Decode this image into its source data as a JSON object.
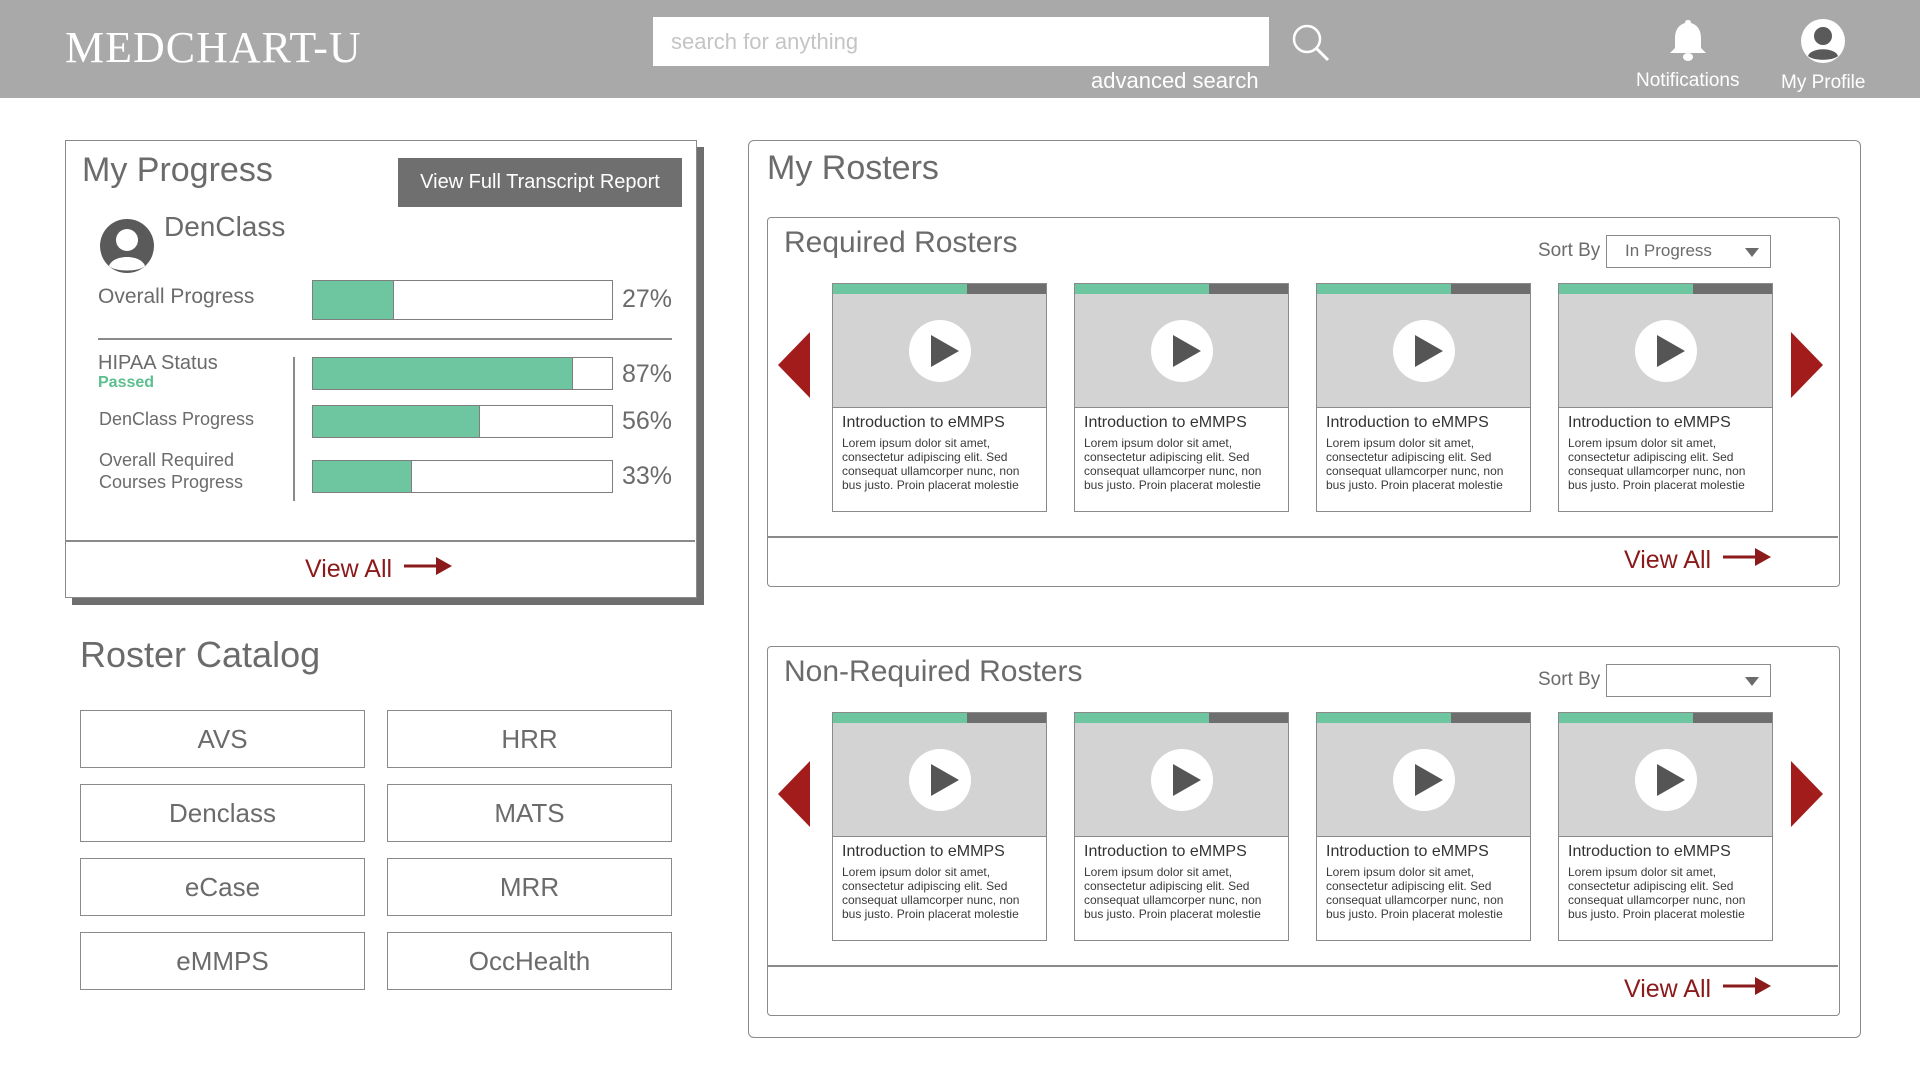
{
  "header": {
    "logo": "MEDCHART-U",
    "search_placeholder": "search for anything",
    "advanced_search": "advanced search",
    "notifications": "Notifications",
    "profile": "My Profile"
  },
  "progress": {
    "title": "My Progress",
    "transcript_button": "View Full Transcript Report",
    "user_name": "DenClass",
    "overall": {
      "label": "Overall Progress",
      "pct": "27%",
      "value": 0.27
    },
    "hipaa": {
      "label": "HIPAA Status",
      "status": "Passed",
      "pct": "87%",
      "value": 0.87
    },
    "denclass": {
      "label": "DenClass Progress",
      "pct": "56%",
      "value": 0.56
    },
    "required": {
      "label_line1": "Overall Required",
      "label_line2": "Courses Progress",
      "pct": "33%",
      "value": 0.33
    },
    "view_all": "View All"
  },
  "catalog": {
    "title": "Roster Catalog",
    "items": [
      "AVS",
      "HRR",
      "Denclass",
      "MATS",
      "eCase",
      "MRR",
      "eMMPS",
      "OccHealth"
    ]
  },
  "rosters": {
    "title": "My Rosters",
    "required": {
      "title": "Required Rosters",
      "sort_label": "Sort By",
      "sort_value": "In Progress",
      "view_all": "View All",
      "cards": [
        {
          "title": "Introduction to eMMPS",
          "desc": "Lorem ipsum dolor sit amet, consectetur adipiscing elit. Sed consequat ullamcorper nunc, non bus justo. Proin placerat molestie",
          "progress": 0.63
        },
        {
          "title": "Introduction to eMMPS",
          "desc": "Lorem ipsum dolor sit amet, consectetur adipiscing elit. Sed consequat ullamcorper nunc, non bus justo. Proin placerat molestie",
          "progress": 0.63
        },
        {
          "title": "Introduction to eMMPS",
          "desc": "Lorem ipsum dolor sit amet, consectetur adipiscing elit. Sed consequat ullamcorper nunc, non bus justo. Proin placerat molestie",
          "progress": 0.63
        },
        {
          "title": "Introduction to eMMPS",
          "desc": "Lorem ipsum dolor sit amet, consectetur adipiscing elit. Sed consequat ullamcorper nunc, non bus justo. Proin placerat molestie",
          "progress": 0.63
        }
      ]
    },
    "nonrequired": {
      "title": "Non-Required Rosters",
      "sort_label": "Sort By",
      "sort_value": "",
      "view_all": "View All",
      "cards": [
        {
          "title": "Introduction to eMMPS",
          "desc": "Lorem ipsum dolor sit amet, consectetur adipiscing elit. Sed consequat ullamcorper nunc, non bus justo. Proin placerat molestie",
          "progress": 0.63
        },
        {
          "title": "Introduction to eMMPS",
          "desc": "Lorem ipsum dolor sit amet, consectetur adipiscing elit. Sed consequat ullamcorper nunc, non bus justo. Proin placerat molestie",
          "progress": 0.63
        },
        {
          "title": "Introduction to eMMPS",
          "desc": "Lorem ipsum dolor sit amet, consectetur adipiscing elit. Sed consequat ullamcorper nunc, non bus justo. Proin placerat molestie",
          "progress": 0.63
        },
        {
          "title": "Introduction to eMMPS",
          "desc": "Lorem ipsum dolor sit amet, consectetur adipiscing elit. Sed consequat ullamcorper nunc, non bus justo. Proin placerat molestie",
          "progress": 0.63
        }
      ]
    }
  },
  "colors": {
    "header_bg": "#a9a9a9",
    "progress_green": "#6dc6a0",
    "accent_red": "#8b1a1a",
    "arrow_red": "#a31c1c",
    "passed_green": "#5bbf8e"
  },
  "icons": [
    "search-icon",
    "bell-icon",
    "profile-icon",
    "avatar",
    "arrow-right-icon",
    "chevron-left-icon",
    "chevron-right-icon",
    "play-icon",
    "caret-down-icon"
  ]
}
